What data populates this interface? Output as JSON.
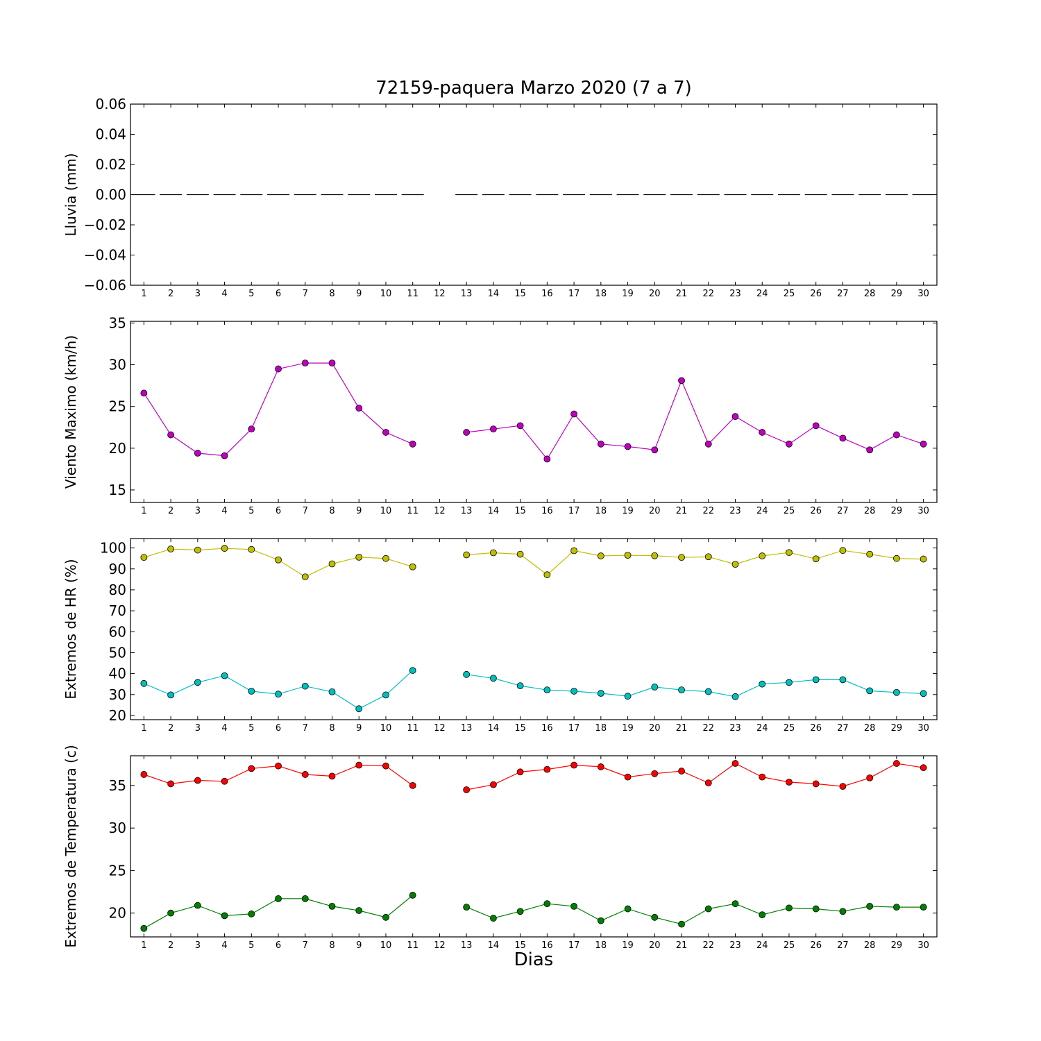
{
  "title": "72159-paquera Marzo 2020  (7 a 7)",
  "xlabel": "Dias",
  "colors": {
    "wind": "#bf00bf",
    "hr_max": "#bfbf00",
    "hr_min": "#00bfbf",
    "temp_max": "#ff0000",
    "temp_min": "#008000",
    "rain": "#000000"
  },
  "chart_data": [
    {
      "type": "line",
      "ylabel": "Lluvia (mm)",
      "ylim": [
        -0.06,
        0.06
      ],
      "yticks": [
        -0.06,
        -0.04,
        -0.02,
        0.0,
        0.02,
        0.04,
        0.06
      ],
      "ytick_labels": [
        "−0.06",
        "−0.04",
        "−0.02",
        "0.00",
        "0.02",
        "0.04",
        "0.06"
      ],
      "x": [
        1,
        2,
        3,
        4,
        5,
        6,
        7,
        8,
        9,
        10,
        11,
        12,
        13,
        14,
        15,
        16,
        17,
        18,
        19,
        20,
        21,
        22,
        23,
        24,
        25,
        26,
        27,
        28,
        29,
        30
      ],
      "xticks": [
        "1",
        "2",
        "3",
        "4",
        "5",
        "6",
        "7",
        "8",
        "9",
        "10",
        "11",
        "12",
        "13",
        "14",
        "15",
        "16",
        "17",
        "18",
        "19",
        "20",
        "21",
        "22",
        "23",
        "24",
        "25",
        "26",
        "27",
        "28",
        "29",
        "30"
      ],
      "series": [
        {
          "values": [
            0,
            0,
            0,
            0,
            0,
            0,
            0,
            0,
            0,
            0,
            0,
            null,
            0,
            0,
            0,
            0,
            0,
            0,
            0,
            0,
            0,
            0,
            0,
            0,
            0,
            0,
            0,
            0,
            0,
            0
          ],
          "style": "bar-dash",
          "color": "#000000"
        }
      ]
    },
    {
      "type": "line",
      "ylabel": "Viento Maximo (km/h)",
      "ylim": [
        13.5,
        35.2
      ],
      "yticks": [
        15,
        20,
        25,
        30,
        35
      ],
      "ytick_labels": [
        "15",
        "20",
        "25",
        "30",
        "35"
      ],
      "x": [
        1,
        2,
        3,
        4,
        5,
        6,
        7,
        8,
        9,
        10,
        11,
        12,
        13,
        14,
        15,
        16,
        17,
        18,
        19,
        20,
        21,
        22,
        23,
        24,
        25,
        26,
        27,
        28,
        29,
        30
      ],
      "xticks": [
        "1",
        "2",
        "3",
        "4",
        "5",
        "6",
        "7",
        "8",
        "9",
        "10",
        "11",
        "12",
        "13",
        "14",
        "15",
        "16",
        "17",
        "18",
        "19",
        "20",
        "21",
        "22",
        "23",
        "24",
        "25",
        "26",
        "27",
        "28",
        "29",
        "30"
      ],
      "series": [
        {
          "values": [
            26.6,
            21.6,
            19.4,
            19.1,
            22.3,
            29.5,
            30.2,
            30.2,
            24.8,
            21.9,
            20.5,
            null,
            21.9,
            22.3,
            22.7,
            18.7,
            24.1,
            20.5,
            20.2,
            19.8,
            28.1,
            20.5,
            23.8,
            21.9,
            20.5,
            22.7,
            21.2,
            19.8,
            21.6,
            20.5
          ],
          "color": "#bf00bf"
        }
      ]
    },
    {
      "type": "line",
      "ylabel": "Extremos de HR (%)",
      "ylim": [
        18,
        104.5
      ],
      "yticks": [
        20,
        30,
        40,
        50,
        60,
        70,
        80,
        90,
        100
      ],
      "ytick_labels": [
        "20",
        "30",
        "40",
        "50",
        "60",
        "70",
        "80",
        "90",
        "100"
      ],
      "x": [
        1,
        2,
        3,
        4,
        5,
        6,
        7,
        8,
        9,
        10,
        11,
        12,
        13,
        14,
        15,
        16,
        17,
        18,
        19,
        20,
        21,
        22,
        23,
        24,
        25,
        26,
        27,
        28,
        29,
        30
      ],
      "xticks": [
        "1",
        "2",
        "3",
        "4",
        "5",
        "6",
        "7",
        "8",
        "9",
        "10",
        "11",
        "12",
        "13",
        "14",
        "15",
        "16",
        "17",
        "18",
        "19",
        "20",
        "21",
        "22",
        "23",
        "24",
        "25",
        "26",
        "27",
        "28",
        "29",
        "30"
      ],
      "series": [
        {
          "values": [
            95.5,
            99.5,
            99,
            99.8,
            99.3,
            94.3,
            86.2,
            92.4,
            95.6,
            95,
            91,
            null,
            96.7,
            97.7,
            97,
            87.2,
            98.7,
            96.2,
            96.5,
            96.3,
            95.5,
            95.8,
            92.2,
            96.2,
            97.8,
            94.8,
            98.8,
            97,
            95,
            94.7
          ],
          "color": "#bfbf00"
        },
        {
          "values": [
            35.3,
            29.8,
            35.8,
            39,
            31.6,
            30.2,
            34,
            31.3,
            23.2,
            29.8,
            41.5,
            null,
            39.6,
            37.8,
            34.2,
            32.2,
            31.6,
            30.6,
            29.2,
            33.6,
            32.2,
            31.4,
            29,
            35,
            35.8,
            37.1,
            37.1,
            31.8,
            31,
            30.5
          ],
          "color": "#00bfbf"
        }
      ]
    },
    {
      "type": "line",
      "ylabel": "Extremos de Temperatura (c)",
      "ylim": [
        17.2,
        38.5
      ],
      "yticks": [
        20,
        25,
        30,
        35
      ],
      "ytick_labels": [
        "20",
        "25",
        "30",
        "35"
      ],
      "x": [
        1,
        2,
        3,
        4,
        5,
        6,
        7,
        8,
        9,
        10,
        11,
        12,
        13,
        14,
        15,
        16,
        17,
        18,
        19,
        20,
        21,
        22,
        23,
        24,
        25,
        26,
        27,
        28,
        29,
        30
      ],
      "xticks": [
        "1",
        "2",
        "3",
        "4",
        "5",
        "6",
        "7",
        "8",
        "9",
        "10",
        "11",
        "12",
        "13",
        "14",
        "15",
        "16",
        "17",
        "18",
        "19",
        "20",
        "21",
        "22",
        "23",
        "24",
        "25",
        "26",
        "27",
        "28",
        "29",
        "30"
      ],
      "series": [
        {
          "values": [
            36.3,
            35.2,
            35.6,
            35.5,
            37,
            37.3,
            36.3,
            36.1,
            37.4,
            37.3,
            35,
            null,
            34.5,
            35.1,
            36.6,
            36.9,
            37.4,
            37.2,
            36,
            36.4,
            36.7,
            35.3,
            37.6,
            36,
            35.4,
            35.2,
            34.9,
            35.9,
            37.6,
            37.1
          ],
          "color": "#ff0000"
        },
        {
          "values": [
            18.2,
            20,
            20.9,
            19.7,
            19.9,
            21.7,
            21.7,
            20.8,
            20.3,
            19.5,
            22.1,
            null,
            20.7,
            19.4,
            20.2,
            21.1,
            20.8,
            19.1,
            20.5,
            19.5,
            18.7,
            20.5,
            21.1,
            19.8,
            20.6,
            20.5,
            20.2,
            20.8,
            20.7,
            20.7
          ],
          "color": "#008000"
        }
      ]
    }
  ]
}
